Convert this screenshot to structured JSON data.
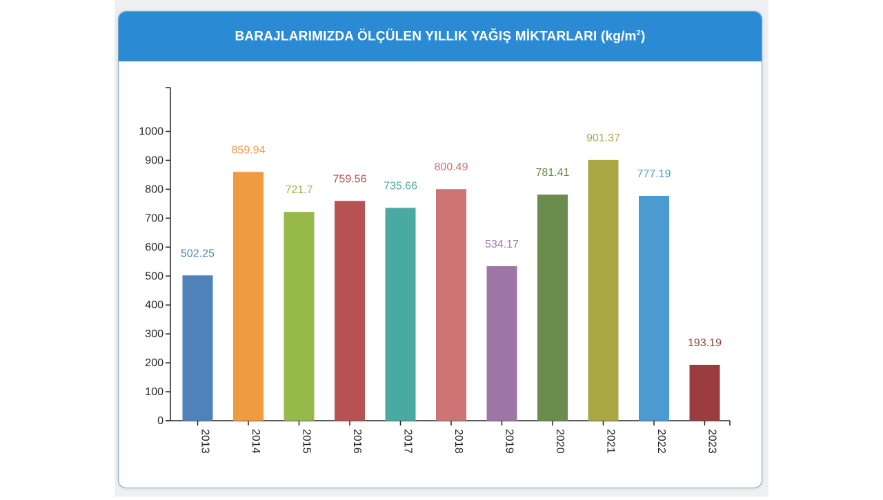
{
  "header": {
    "title": "BARAJLARIMIZDA ÖLÇÜLEN YILLIK YAĞIŞ MİKTARLARI (kg/m",
    "title_sup": "2",
    "title_end": ")"
  },
  "chart_data": {
    "type": "bar",
    "title": "BARAJLARIMIZDA ÖLÇÜLEN YILLIK YAĞIŞ MİKTARLARI (kg/m²)",
    "xlabel": "",
    "ylabel": "",
    "ylim": [
      0,
      1100
    ],
    "yticks": [
      0,
      100,
      200,
      300,
      400,
      500,
      600,
      700,
      800,
      900,
      1000
    ],
    "grid": false,
    "legend": "none",
    "categories": [
      "2013",
      "2014",
      "2015",
      "2016",
      "2017",
      "2018",
      "2019",
      "2020",
      "2021",
      "2022",
      "2023"
    ],
    "values": [
      502.25,
      859.94,
      721.7,
      759.56,
      735.66,
      800.49,
      534.17,
      781.41,
      901.37,
      777.19,
      193.19
    ],
    "value_labels": [
      "502.25",
      "859.94",
      "721.7",
      "759.56",
      "735.66",
      "800.49",
      "534.17",
      "781.41",
      "901.37",
      "777.19",
      "193.19"
    ],
    "colors": [
      "#4e82b8",
      "#ef9b3f",
      "#96b94a",
      "#b85151",
      "#4ba9a3",
      "#ce7474",
      "#9d76a5",
      "#6a8c4c",
      "#a9a844",
      "#4b9bd0",
      "#9c3c3f"
    ]
  }
}
